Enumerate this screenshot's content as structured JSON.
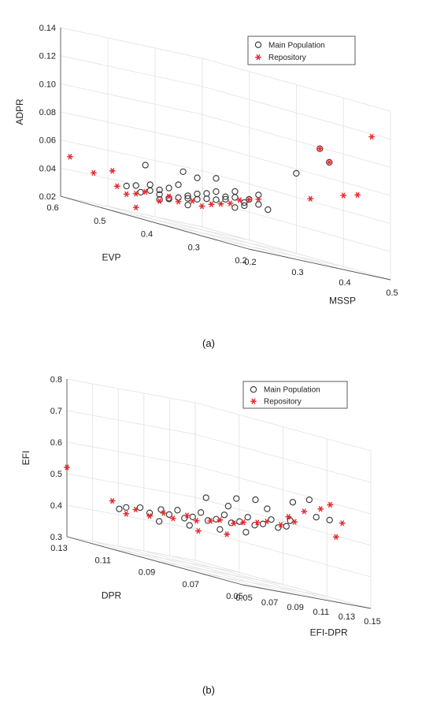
{
  "chart_data": [
    {
      "type": "scatter",
      "caption": "(a)",
      "xlabel": "MSSP",
      "ylabel": "EVP",
      "zlabel": "ADPR",
      "xlim": [
        0.2,
        0.5
      ],
      "ylim": [
        0.2,
        0.6
      ],
      "zlim": [
        0.02,
        0.14
      ],
      "xticks": [
        "0.2",
        "0.3",
        "0.4",
        "0.5"
      ],
      "yticks": [
        "0.2",
        "0.3",
        "0.4",
        "0.5",
        "0.6"
      ],
      "zticks": [
        "0.02",
        "0.04",
        "0.06",
        "0.08",
        "0.10",
        "0.12",
        "0.14"
      ],
      "legend": {
        "placement": "top-right",
        "entries": [
          "Main Population",
          "Repository"
        ]
      },
      "grid": true,
      "colors": {
        "main": "#333333",
        "repository": "#e8262b"
      },
      "series": [
        {
          "name": "Main Population",
          "marker": "circle",
          "points": [
            [
              0.22,
              0.48,
              0.04
            ],
            [
              0.23,
              0.47,
              0.042
            ],
            [
              0.24,
              0.47,
              0.038
            ],
            [
              0.24,
              0.45,
              0.041
            ],
            [
              0.25,
              0.46,
              0.045
            ],
            [
              0.25,
              0.44,
              0.04
            ],
            [
              0.26,
              0.45,
              0.043
            ],
            [
              0.26,
              0.43,
              0.039
            ],
            [
              0.27,
              0.44,
              0.046
            ],
            [
              0.27,
              0.42,
              0.041
            ],
            [
              0.28,
              0.43,
              0.05
            ],
            [
              0.28,
              0.41,
              0.044
            ],
            [
              0.29,
              0.42,
              0.042
            ],
            [
              0.29,
              0.4,
              0.047
            ],
            [
              0.3,
              0.41,
              0.043
            ],
            [
              0.3,
              0.39,
              0.049
            ],
            [
              0.31,
              0.4,
              0.045
            ],
            [
              0.31,
              0.38,
              0.052
            ],
            [
              0.32,
              0.39,
              0.046
            ],
            [
              0.32,
              0.37,
              0.05
            ],
            [
              0.33,
              0.38,
              0.048
            ],
            [
              0.33,
              0.36,
              0.044
            ],
            [
              0.34,
              0.37,
              0.051
            ],
            [
              0.34,
              0.35,
              0.047
            ],
            [
              0.35,
              0.36,
              0.049
            ],
            [
              0.25,
              0.47,
              0.058
            ],
            [
              0.29,
              0.43,
              0.06
            ],
            [
              0.31,
              0.42,
              0.058
            ],
            [
              0.33,
              0.4,
              0.061
            ],
            [
              0.35,
              0.38,
              0.055
            ],
            [
              0.36,
              0.36,
              0.052
            ],
            [
              0.37,
              0.35,
              0.05
            ],
            [
              0.38,
              0.34,
              0.048
            ],
            [
              0.36,
              0.34,
              0.057
            ],
            [
              0.27,
              0.46,
              0.036
            ],
            [
              0.28,
              0.45,
              0.038
            ],
            [
              0.3,
              0.43,
              0.037
            ],
            [
              0.45,
              0.35,
              0.078
            ],
            [
              0.46,
              0.31,
              0.1
            ],
            [
              0.47,
              0.3,
              0.092
            ]
          ]
        },
        {
          "name": "Repository",
          "marker": "asterisk",
          "points": [
            [
              0.2,
              0.58,
              0.05
            ],
            [
              0.21,
              0.54,
              0.043
            ],
            [
              0.22,
              0.5,
              0.038
            ],
            [
              0.23,
              0.49,
              0.034
            ],
            [
              0.24,
              0.48,
              0.036
            ],
            [
              0.25,
              0.47,
              0.039
            ],
            [
              0.26,
              0.45,
              0.035
            ],
            [
              0.27,
              0.44,
              0.04
            ],
            [
              0.28,
              0.43,
              0.038
            ],
            [
              0.29,
              0.41,
              0.041
            ],
            [
              0.3,
              0.4,
              0.039
            ],
            [
              0.31,
              0.39,
              0.042
            ],
            [
              0.32,
              0.38,
              0.044
            ],
            [
              0.33,
              0.37,
              0.046
            ],
            [
              0.34,
              0.36,
              0.05
            ],
            [
              0.35,
              0.35,
              0.052
            ],
            [
              0.36,
              0.34,
              0.054
            ],
            [
              0.25,
              0.49,
              0.026
            ],
            [
              0.22,
              0.51,
              0.048
            ],
            [
              0.44,
              0.31,
              0.063
            ],
            [
              0.46,
              0.31,
              0.1
            ],
            [
              0.47,
              0.3,
              0.092
            ],
            [
              0.48,
              0.28,
              0.071
            ],
            [
              0.49,
              0.26,
              0.074
            ],
            [
              0.5,
              0.24,
              0.118
            ]
          ]
        }
      ]
    },
    {
      "type": "scatter",
      "caption": "(b)",
      "xlabel": "EFI-DPR",
      "ylabel": "DPR",
      "zlabel": "EFI",
      "xlim": [
        0.05,
        0.15
      ],
      "ylim": [
        0.05,
        0.13
      ],
      "zlim": [
        0.3,
        0.8
      ],
      "xticks": [
        "0.05",
        "0.07",
        "0.09",
        "0.11",
        "0.13",
        "0.15"
      ],
      "yticks": [
        "0.05",
        "0.07",
        "0.09",
        "0.11",
        "0.13"
      ],
      "zticks": [
        "0.3",
        "0.4",
        "0.5",
        "0.6",
        "0.7",
        "0.8"
      ],
      "legend": {
        "placement": "top-right",
        "entries": [
          "Main Population",
          "Repository"
        ]
      },
      "grid": true,
      "colors": {
        "main": "#333333",
        "repository": "#e8262b"
      },
      "series": [
        {
          "name": "Main Population",
          "marker": "circle",
          "points": [
            [
              0.062,
              0.11,
              0.44
            ],
            [
              0.066,
              0.106,
              0.45
            ],
            [
              0.07,
              0.104,
              0.44
            ],
            [
              0.072,
              0.1,
              0.46
            ],
            [
              0.075,
              0.098,
              0.45
            ],
            [
              0.078,
              0.096,
              0.47
            ],
            [
              0.08,
              0.094,
              0.45
            ],
            [
              0.083,
              0.092,
              0.46
            ],
            [
              0.086,
              0.09,
              0.48
            ],
            [
              0.088,
              0.088,
              0.46
            ],
            [
              0.091,
              0.086,
              0.47
            ],
            [
              0.094,
              0.084,
              0.49
            ],
            [
              0.096,
              0.082,
              0.47
            ],
            [
              0.099,
              0.08,
              0.48
            ],
            [
              0.102,
              0.078,
              0.5
            ],
            [
              0.104,
              0.076,
              0.48
            ],
            [
              0.107,
              0.074,
              0.49
            ],
            [
              0.11,
              0.072,
              0.51
            ],
            [
              0.112,
              0.07,
              0.49
            ],
            [
              0.115,
              0.068,
              0.5
            ],
            [
              0.09,
              0.09,
              0.53
            ],
            [
              0.1,
              0.082,
              0.55
            ],
            [
              0.108,
              0.078,
              0.56
            ],
            [
              0.112,
              0.075,
              0.54
            ],
            [
              0.12,
              0.068,
              0.58
            ],
            [
              0.126,
              0.064,
              0.6
            ],
            [
              0.128,
              0.062,
              0.55
            ],
            [
              0.118,
              0.068,
              0.52
            ],
            [
              0.074,
              0.102,
              0.42
            ],
            [
              0.084,
              0.094,
              0.43
            ],
            [
              0.094,
              0.086,
              0.44
            ],
            [
              0.104,
              0.08,
              0.45
            ],
            [
              0.06,
              0.112,
              0.43
            ],
            [
              0.097,
              0.084,
              0.52
            ],
            [
              0.135,
              0.06,
              0.55
            ]
          ]
        },
        {
          "name": "Repository",
          "marker": "asterisk",
          "points": [
            [
              0.05,
              0.13,
              0.52
            ],
            [
              0.058,
              0.114,
              0.45
            ],
            [
              0.062,
              0.11,
              0.42
            ],
            [
              0.066,
              0.108,
              0.44
            ],
            [
              0.07,
              0.104,
              0.43
            ],
            [
              0.074,
              0.1,
              0.45
            ],
            [
              0.078,
              0.098,
              0.44
            ],
            [
              0.082,
              0.094,
              0.46
            ],
            [
              0.086,
              0.092,
              0.45
            ],
            [
              0.09,
              0.088,
              0.46
            ],
            [
              0.094,
              0.086,
              0.47
            ],
            [
              0.098,
              0.082,
              0.47
            ],
            [
              0.102,
              0.08,
              0.48
            ],
            [
              0.106,
              0.076,
              0.49
            ],
            [
              0.11,
              0.074,
              0.5
            ],
            [
              0.114,
              0.07,
              0.5
            ],
            [
              0.118,
              0.066,
              0.52
            ],
            [
              0.122,
              0.064,
              0.56
            ],
            [
              0.128,
              0.06,
              0.58
            ],
            [
              0.132,
              0.058,
              0.6
            ],
            [
              0.138,
              0.056,
              0.55
            ],
            [
              0.084,
              0.09,
              0.42
            ],
            [
              0.096,
              0.084,
              0.43
            ],
            [
              0.14,
              0.06,
              0.5
            ],
            [
              0.12,
              0.07,
              0.53
            ]
          ]
        }
      ]
    }
  ]
}
